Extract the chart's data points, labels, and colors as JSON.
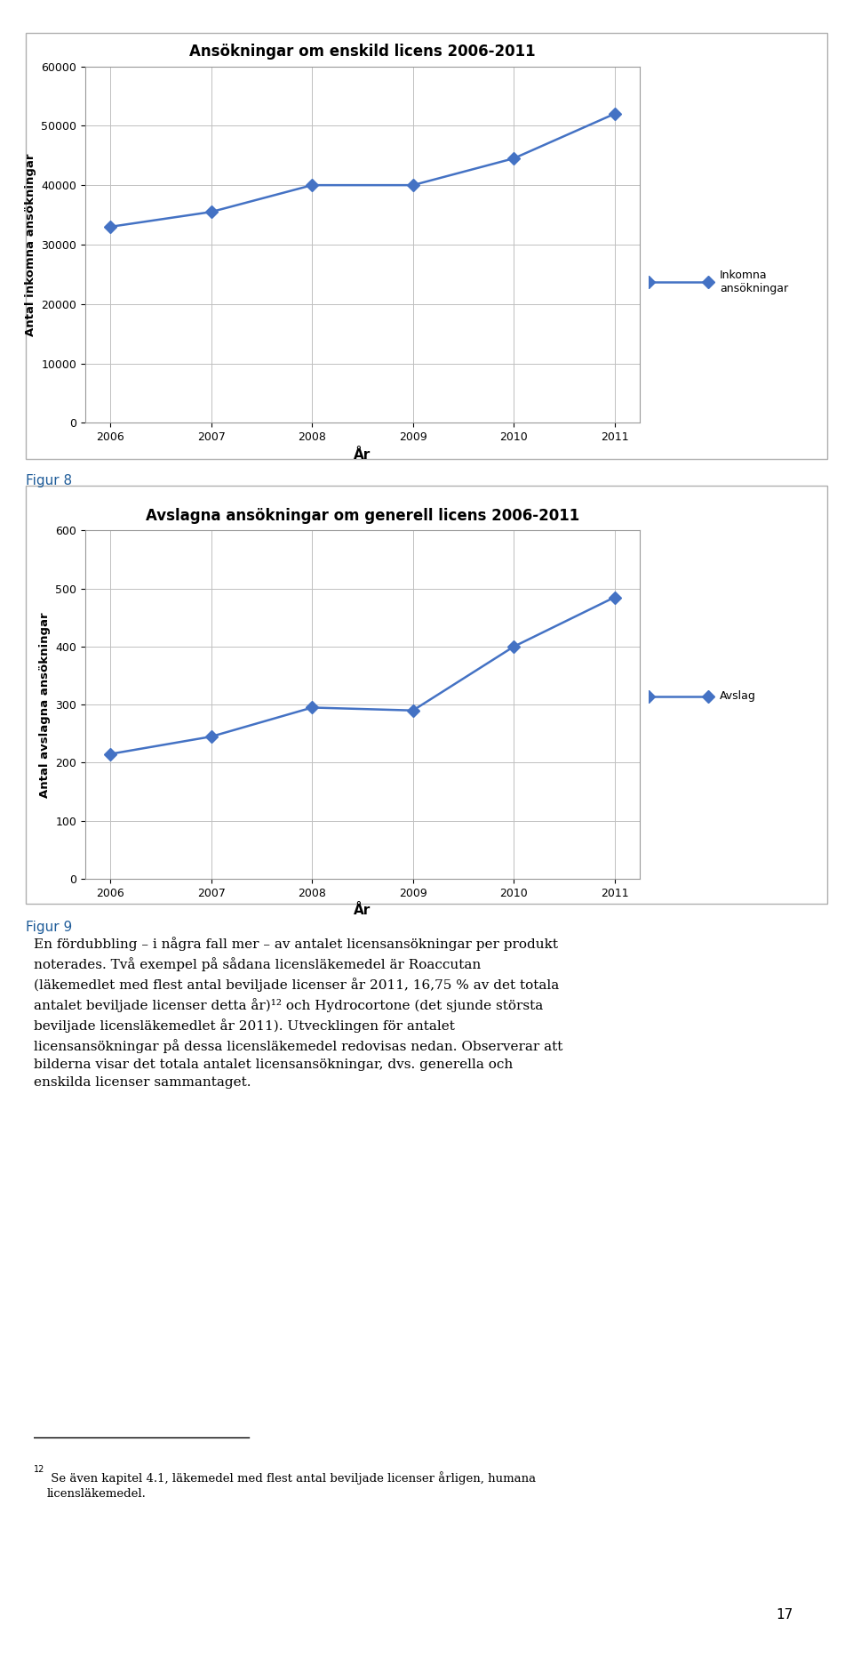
{
  "chart1": {
    "title": "Ansökningar om enskild licens 2006-2011",
    "years": [
      2006,
      2007,
      2008,
      2009,
      2010,
      2011
    ],
    "values": [
      33000,
      35500,
      40000,
      40000,
      44500,
      52000
    ],
    "ylabel": "Antal inkomna ansökningar",
    "xlabel": "År",
    "ylim": [
      0,
      60000
    ],
    "yticks": [
      0,
      10000,
      20000,
      30000,
      40000,
      50000,
      60000
    ],
    "legend_label": "Inkomna\nansökningar",
    "line_color": "#4472C4",
    "marker": "D"
  },
  "chart2": {
    "title": "Avslagna ansökningar om generell licens 2006-2011",
    "years": [
      2006,
      2007,
      2008,
      2009,
      2010,
      2011
    ],
    "values": [
      215,
      245,
      295,
      290,
      400,
      485
    ],
    "ylabel": "Antal avslagna ansökningar",
    "xlabel": "År",
    "ylim": [
      0,
      600
    ],
    "yticks": [
      0,
      100,
      200,
      300,
      400,
      500,
      600
    ],
    "legend_label": "Avslag",
    "line_color": "#4472C4",
    "marker": "D"
  },
  "figur8_label": "Figur 8",
  "figur9_label": "Figur 9",
  "body_lines": [
    "En fördubbling – i några fall mer – av antalet licensansökningar per produkt",
    "noterades. Två exempel på sådana licensläkemedel är Roaccutan",
    "(läkemedlet med flest antal beviljade licenser år 2011, 16,75 % av det totala",
    "antalet beviljade licenser detta år)¹² och Hydrocortone (det sjunde största",
    "beviljade licensläkemedlet år 2011). Utvecklingen för antalet",
    "licensansökningar på dessa licensläkemedel redovisas nedan. Observerar att",
    "bilderna visar det totala antalet licensansökningar, dvs. generella och",
    "enskilda licenser sammantaget."
  ],
  "footnote_superscript": "12",
  "footnote_text": " Se även kapitel 4.1, läkemedel med flest antal beviljade licenser årligen, humana\nlicensläkemedel.",
  "page_number": "17",
  "bg_color": "#ffffff",
  "text_color": "#000000",
  "figur_color": "#1F5C99",
  "chart_border_color": "#808080",
  "chart_box_color": "#B0B0B0"
}
